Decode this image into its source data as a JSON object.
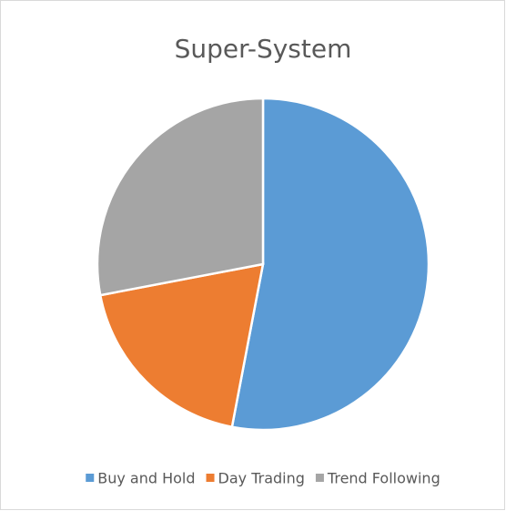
{
  "chart_data": {
    "type": "pie",
    "title": "Super-System",
    "categories": [
      "Buy and Hold",
      "Day Trading",
      "Trend Following"
    ],
    "values": [
      53,
      19,
      28
    ],
    "colors": [
      "#5b9bd5",
      "#ed7d31",
      "#a5a5a5"
    ],
    "legend": "bottom"
  }
}
